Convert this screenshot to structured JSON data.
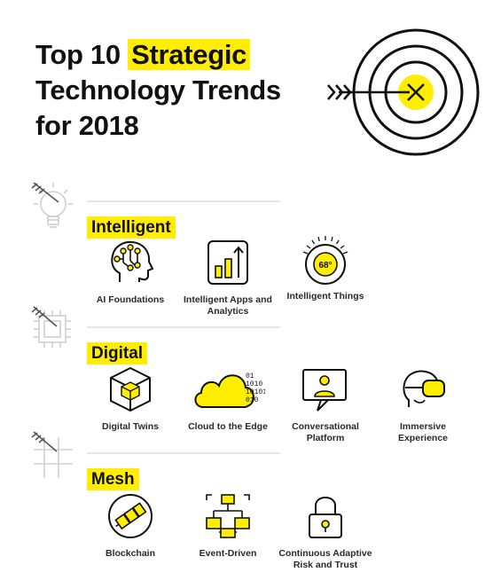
{
  "title": {
    "part1": "Top 10 ",
    "highlight": "Strategic",
    "line2": "Technology Trends",
    "line3": "for 2018"
  },
  "colors": {
    "accent": "#ffee00",
    "ink": "#111111",
    "rule": "#e6e6e6"
  },
  "sections": [
    {
      "label": "Intelligent",
      "items": [
        {
          "label": "AI Foundations",
          "icon": "ai-head-icon"
        },
        {
          "label": "Intelligent Apps and Analytics",
          "icon": "bar-chart-icon"
        },
        {
          "label": "Intelligent Things",
          "icon": "thermostat-icon",
          "dial_text": "68°"
        }
      ]
    },
    {
      "label": "Digital",
      "items": [
        {
          "label": "Digital Twins",
          "icon": "cube-icon"
        },
        {
          "label": "Cloud to the Edge",
          "icon": "cloud-icon",
          "binary": [
            "01",
            "1010",
            "10101",
            "010"
          ]
        },
        {
          "label": "Conversational Platform",
          "icon": "monitor-person-icon"
        },
        {
          "label": "Immersive Experience",
          "icon": "vr-headset-icon"
        }
      ]
    },
    {
      "label": "Mesh",
      "items": [
        {
          "label": "Blockchain",
          "icon": "blockchain-icon"
        },
        {
          "label": "Event-Driven",
          "icon": "network-icon"
        },
        {
          "label": "Continuous Adaptive Risk and Trust",
          "icon": "padlock-icon"
        }
      ]
    }
  ]
}
